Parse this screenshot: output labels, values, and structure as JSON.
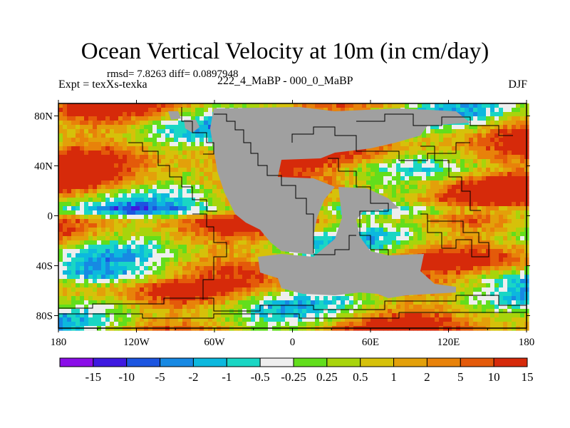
{
  "header": {
    "title": "Ocean Vertical Velocity at 10m (in cm/day)",
    "stats": "rmsd= 7.8263 diff= 0.0897948",
    "experiment": "Expt = texXs-texka",
    "runs": "222_4_MaBP - 000_0_MaBP",
    "season": "DJF"
  },
  "map": {
    "land_color": "#a0a0a0",
    "coastline_color": "#000000",
    "x_ticks": [
      "180",
      "120W",
      "60W",
      "0",
      "60E",
      "120E",
      "180"
    ],
    "y_ticks": [
      "80N",
      "40N",
      "0",
      "40S",
      "80S"
    ]
  },
  "colorbar": {
    "colors": [
      "#8a0ee8",
      "#3e19e0",
      "#1c55e0",
      "#1789e3",
      "#0cb8de",
      "#1ad6c4",
      "#eeeeee",
      "#62de1c",
      "#a8d40c",
      "#d6c10a",
      "#e3a00a",
      "#e8820a",
      "#e45a0a",
      "#d62a0a"
    ],
    "labels": [
      "-15",
      "-10",
      "-5",
      "-2",
      "-1",
      "-0.5",
      "-0.25",
      "0.25",
      "0.5",
      "1",
      "2",
      "5",
      "10",
      "15"
    ]
  }
}
